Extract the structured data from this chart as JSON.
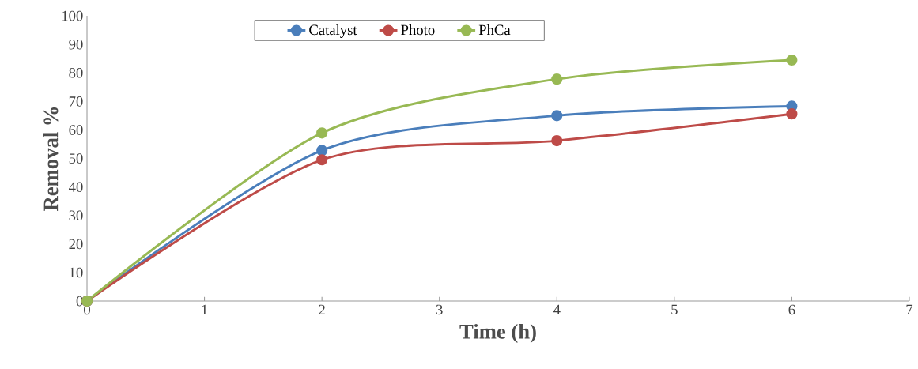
{
  "chart_data": {
    "type": "line",
    "xlabel": "Time (h)",
    "ylabel": "Removal %",
    "x": [
      0,
      2,
      4,
      6
    ],
    "xlim": [
      0,
      7
    ],
    "xticks": [
      0,
      1,
      2,
      3,
      4,
      5,
      6,
      7
    ],
    "ylim": [
      0,
      100
    ],
    "yticks": [
      0,
      10,
      20,
      30,
      40,
      50,
      60,
      70,
      80,
      90,
      100
    ],
    "series": [
      {
        "name": "Catalyst",
        "color": "#4a7ebb",
        "values": [
          0,
          52.8,
          65,
          68.3
        ]
      },
      {
        "name": "Photo",
        "color": "#be4b48",
        "values": [
          0,
          49.5,
          56.2,
          65.6
        ]
      },
      {
        "name": "PhCa",
        "color": "#98b954",
        "values": [
          0,
          58.9,
          77.8,
          84.5
        ]
      }
    ],
    "legend": "top",
    "marker": "circle",
    "line_style": "solid"
  }
}
